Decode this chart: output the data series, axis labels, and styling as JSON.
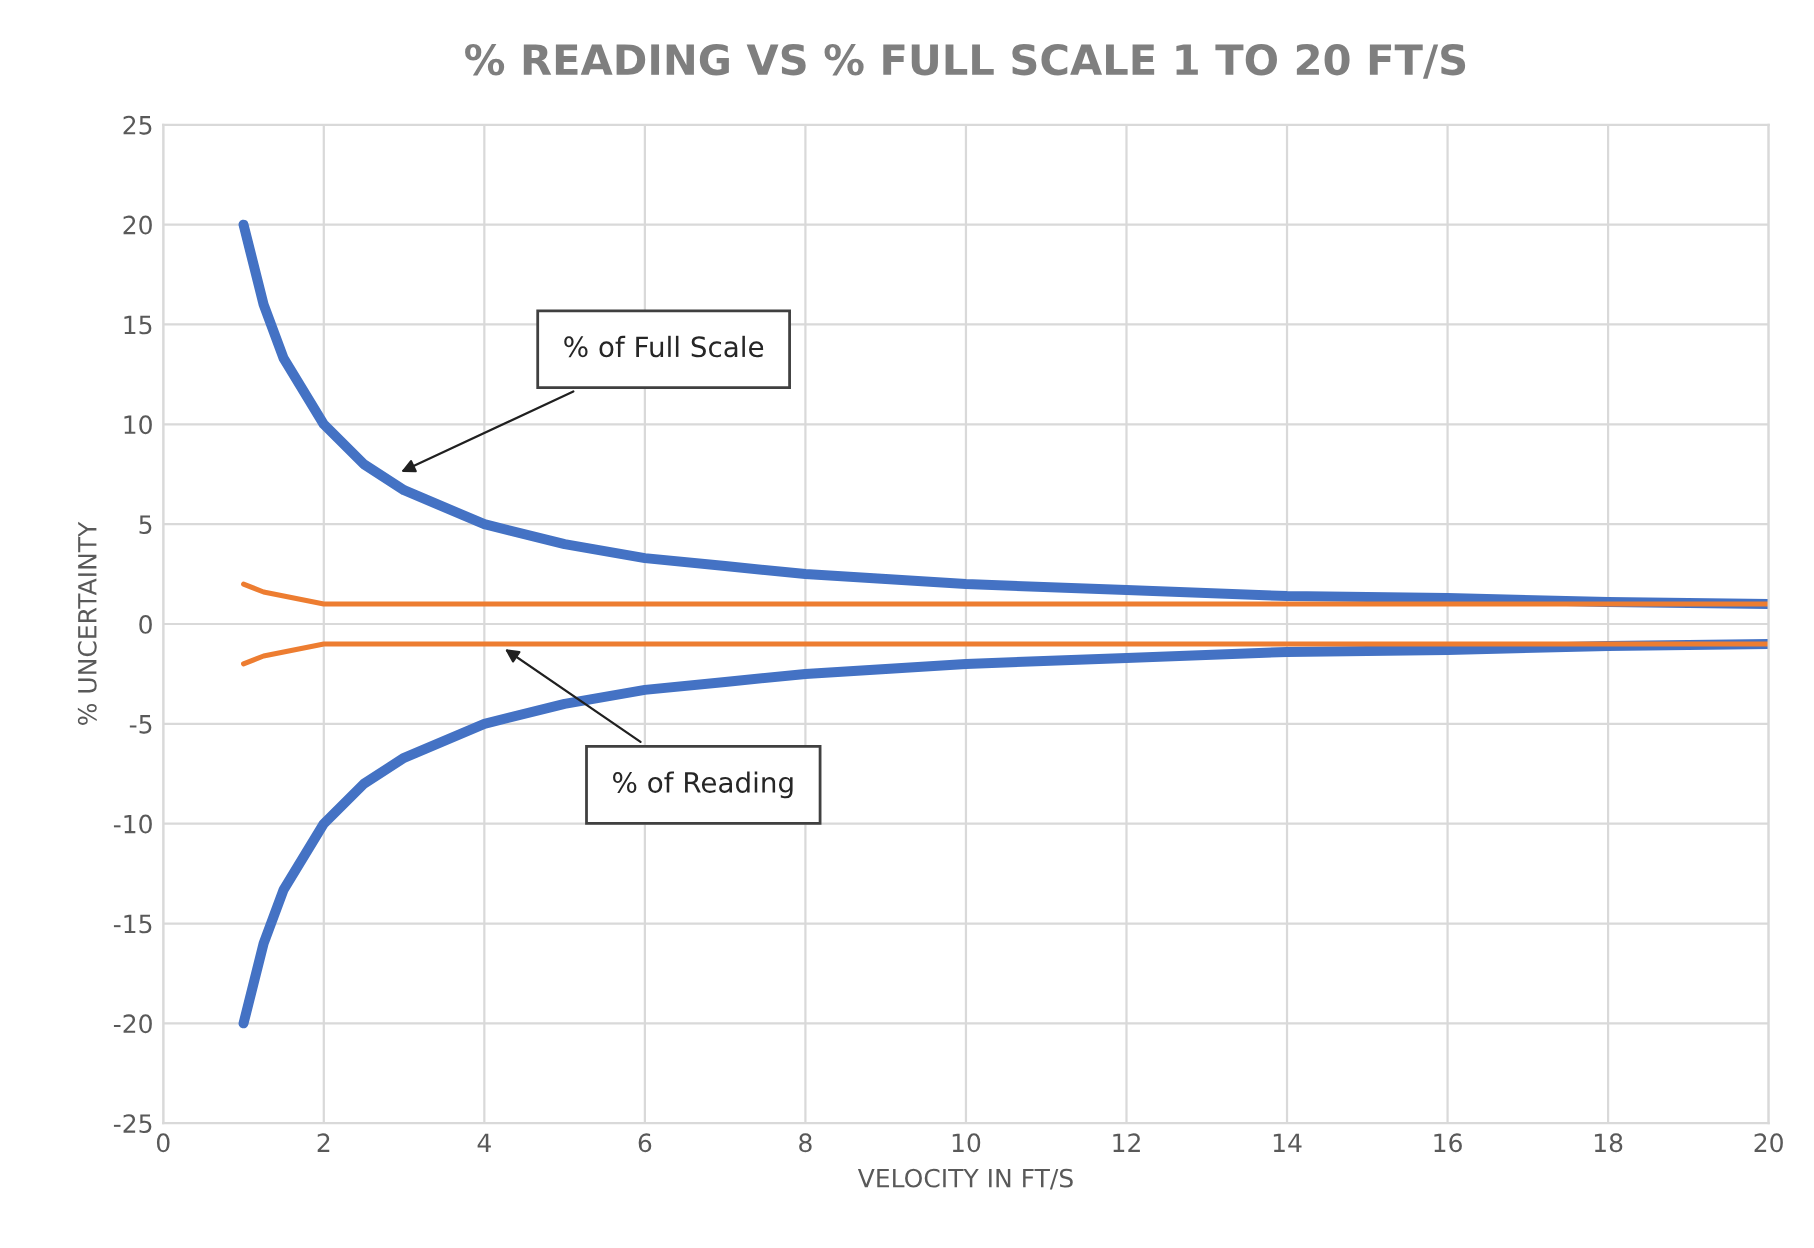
{
  "chart_data": {
    "type": "line",
    "title": "% READING VS % FULL SCALE 1 TO 20 FT/S",
    "xlabel": "VELOCITY IN FT/S",
    "ylabel": "% UNCERTAINTY",
    "series": [
      {
        "color": "#4472c4",
        "x": [
          1,
          1.25,
          1.5,
          2,
          2.5,
          3,
          4,
          5,
          6,
          7,
          8,
          10,
          12,
          14,
          16,
          18,
          20
        ],
        "values": [
          20,
          16,
          13.3,
          10,
          8,
          6.7,
          5,
          4,
          3.3,
          2.9,
          2.5,
          2,
          1.7,
          1.4,
          1.3,
          1.1,
          1
        ]
      },
      {
        "color": "#4472c4",
        "x": [
          1,
          1.25,
          1.5,
          2,
          2.5,
          3,
          4,
          5,
          6,
          7,
          8,
          10,
          12,
          14,
          16,
          18,
          20
        ],
        "values": [
          -20,
          -16,
          -13.3,
          -10,
          -8,
          -6.7,
          -5,
          -4,
          -3.3,
          -2.9,
          -2.5,
          -2,
          -1.7,
          -1.4,
          -1.3,
          -1.1,
          -1
        ]
      },
      {
        "color": "#ed7d31",
        "x": [
          1,
          1.25,
          1.5,
          2,
          20
        ],
        "values": [
          2,
          1.6,
          1.4,
          1,
          1
        ]
      },
      {
        "color": "#ed7d31",
        "x": [
          1,
          1.25,
          1.5,
          2,
          20
        ],
        "values": [
          -2,
          -1.6,
          -1.4,
          -1,
          -1
        ]
      }
    ],
    "annotations": [
      {
        "text": "% of Full Scale",
        "x": 2.9,
        "y": 7.5
      },
      {
        "text": "% of Reading",
        "x": 4.2,
        "y": -1.1
      }
    ],
    "xlim": [
      0,
      20
    ],
    "xticks": [
      0,
      2,
      4,
      6,
      8,
      10,
      12,
      14,
      16,
      18,
      20
    ],
    "ylim": [
      -25,
      25
    ],
    "yticks": [
      -25,
      -20,
      -15,
      -10,
      -5,
      0,
      5,
      10,
      15,
      20,
      25
    ],
    "grid": true,
    "legend": false,
    "marker": "none",
    "line_style": "solid"
  }
}
